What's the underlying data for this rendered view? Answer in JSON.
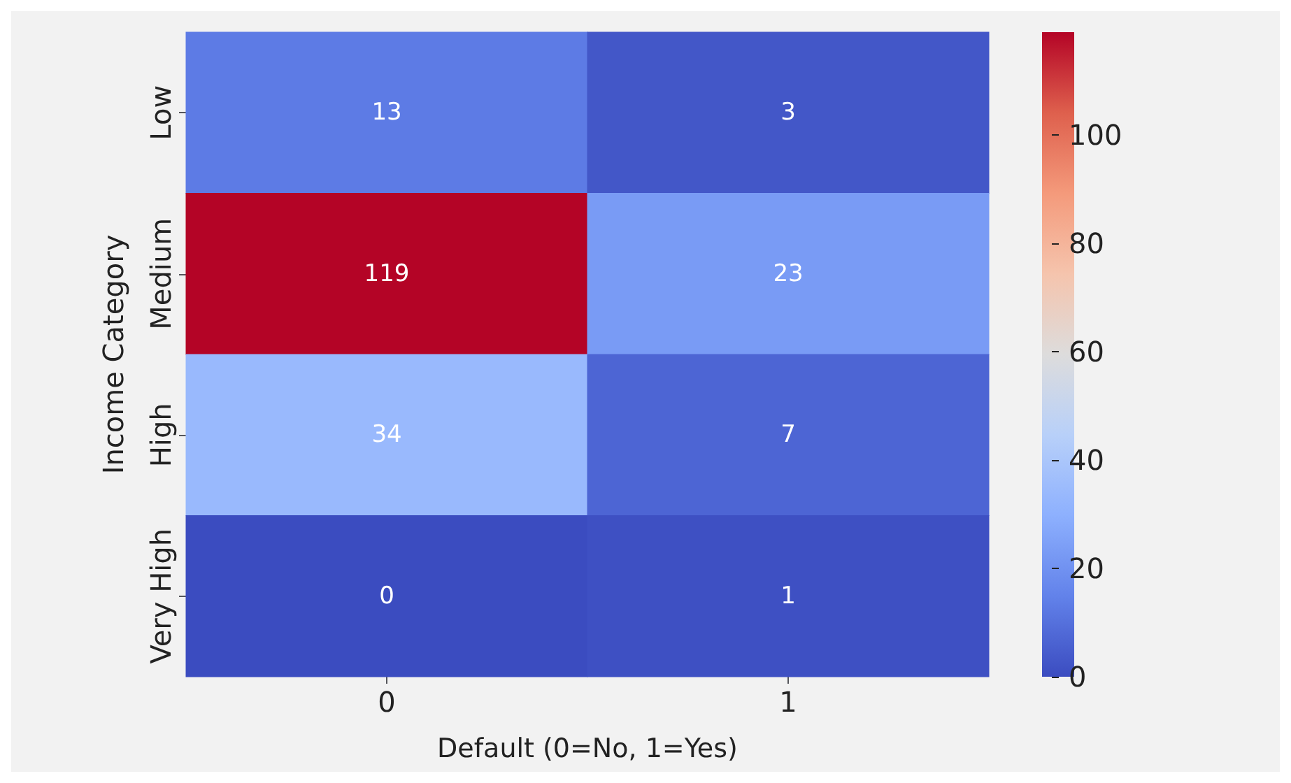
{
  "chart_data": {
    "type": "heatmap",
    "xlabel": "Default (0=No, 1=Yes)",
    "ylabel": "Income Category",
    "categories": [
      "0",
      "1"
    ],
    "y_categories": [
      "Low",
      "Medium",
      "High",
      "Very High"
    ],
    "cells": [
      [
        13,
        3
      ],
      [
        119,
        23
      ],
      [
        34,
        7
      ],
      [
        0,
        1
      ]
    ],
    "data_labels": true,
    "clim": [
      0,
      119
    ],
    "cticks": [
      0,
      20,
      40,
      60,
      80,
      100
    ]
  }
}
